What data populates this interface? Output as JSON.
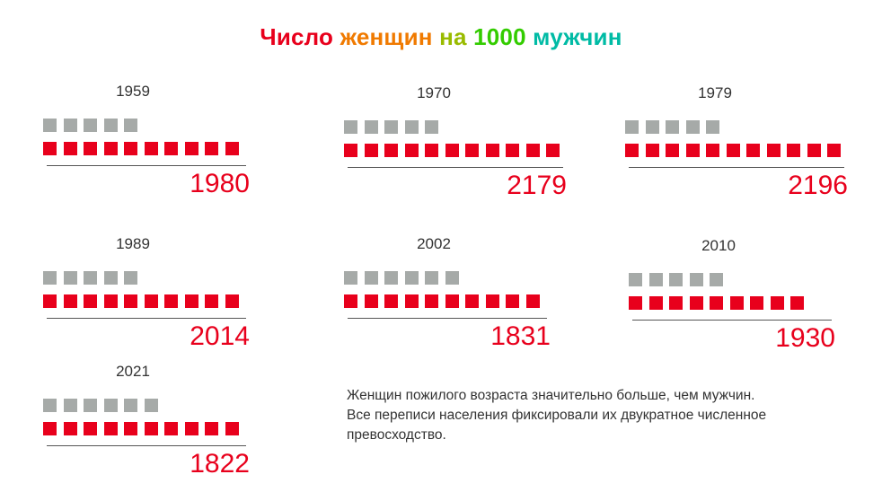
{
  "title_parts": [
    {
      "text": "Число ",
      "color": "#e8001c"
    },
    {
      "text": "женщин ",
      "color": "#f07a00"
    },
    {
      "text": "на ",
      "color": "#99bb00"
    },
    {
      "text": "1000 ",
      "color": "#33cc00"
    },
    {
      "text": "мужчин",
      "color": "#00bba5"
    }
  ],
  "colors": {
    "women": "#e8001c",
    "men": "#a6aaa8"
  },
  "note_lines": [
    "Женщин пожилого возраста значительно больше, чем мужчин.",
    "Все переписи населения фиксировали их двукратное численное",
    "превосходство."
  ],
  "chart_data": {
    "type": "bar",
    "title": "Число женщин на 1000 мужчин",
    "categories": [
      "1959",
      "1970",
      "1979",
      "1989",
      "2002",
      "2010",
      "2021"
    ],
    "series": [
      {
        "values": [
          1980,
          2179,
          2196,
          2014,
          1831,
          1930,
          1822
        ]
      }
    ],
    "pictogram": {
      "men_icons": [
        5,
        5,
        5,
        5,
        6,
        5,
        6
      ],
      "women_icons": [
        10,
        11,
        11,
        10,
        10,
        9,
        10
      ]
    }
  }
}
